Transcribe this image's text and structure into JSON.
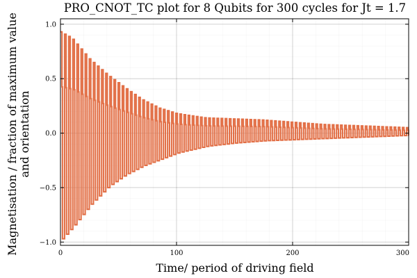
{
  "chart_data": {
    "type": "line",
    "title": "PRO_CNOT_TC plot for 8 Qubits for 300 cycles for Jt = 1.7",
    "xlabel": "Time/ period of driving field",
    "ylabel_line1": "Magnetisation / fraction of maximum value",
    "ylabel_line2": "and orientation",
    "xlim": [
      0,
      300
    ],
    "ylim": [
      -1.03,
      1.05
    ],
    "xticks": [
      0,
      100,
      200,
      300
    ],
    "xtick_labels": [
      "0",
      "100",
      "200",
      "300"
    ],
    "yticks": [
      -1.0,
      -0.5,
      0.0,
      0.5,
      1.0
    ],
    "ytick_labels": [
      "−1.0",
      "−0.5",
      "0.0",
      "0.5",
      "1.0"
    ],
    "grid": true,
    "legend": "none",
    "line_style": "steps",
    "series_color": "#e26f46",
    "upper_envelope": [
      {
        "x": 0,
        "y": 0.93
      },
      {
        "x": 10,
        "y": 0.87
      },
      {
        "x": 25,
        "y": 0.68
      },
      {
        "x": 40,
        "y": 0.54
      },
      {
        "x": 55,
        "y": 0.42
      },
      {
        "x": 70,
        "y": 0.31
      },
      {
        "x": 85,
        "y": 0.23
      },
      {
        "x": 100,
        "y": 0.18
      },
      {
        "x": 125,
        "y": 0.14
      },
      {
        "x": 150,
        "y": 0.13
      },
      {
        "x": 175,
        "y": 0.12
      },
      {
        "x": 200,
        "y": 0.1
      },
      {
        "x": 225,
        "y": 0.08
      },
      {
        "x": 250,
        "y": 0.07
      },
      {
        "x": 275,
        "y": 0.06
      },
      {
        "x": 300,
        "y": 0.05
      }
    ],
    "lower_envelope": [
      {
        "x": 0,
        "y": -0.97
      },
      {
        "x": 10,
        "y": -0.85
      },
      {
        "x": 25,
        "y": -0.65
      },
      {
        "x": 40,
        "y": -0.49
      },
      {
        "x": 55,
        "y": -0.38
      },
      {
        "x": 70,
        "y": -0.3
      },
      {
        "x": 85,
        "y": -0.24
      },
      {
        "x": 100,
        "y": -0.18
      },
      {
        "x": 125,
        "y": -0.12
      },
      {
        "x": 150,
        "y": -0.09
      },
      {
        "x": 175,
        "y": -0.07
      },
      {
        "x": 200,
        "y": -0.06
      },
      {
        "x": 225,
        "y": -0.05
      },
      {
        "x": 250,
        "y": -0.04
      },
      {
        "x": 275,
        "y": -0.03
      },
      {
        "x": 300,
        "y": -0.02
      }
    ]
  }
}
